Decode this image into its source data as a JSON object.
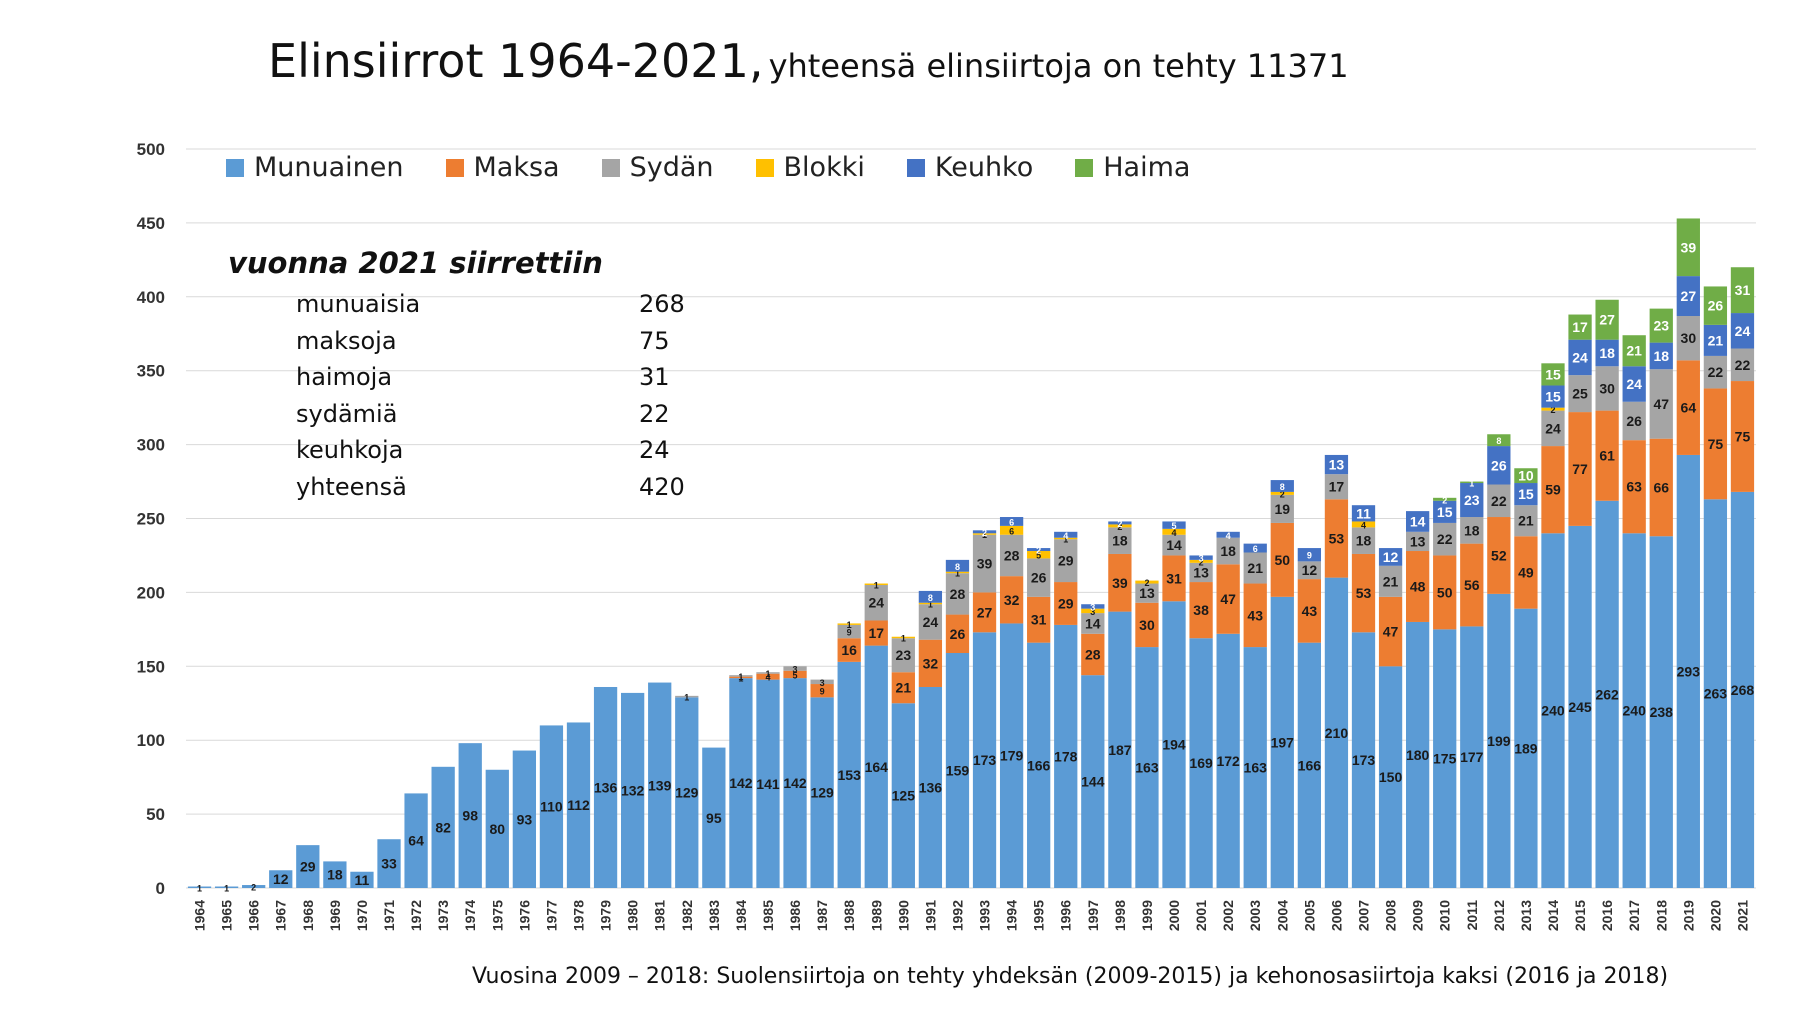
{
  "title": "Elinsiirrot 1964-2021,",
  "subtitle": "yhteensä elinsiirtoja on tehty 11371",
  "info": {
    "heading": "vuonna 2021 siirrettiin",
    "rows": [
      {
        "label": "munuaisia",
        "value": "268"
      },
      {
        "label": "maksoja",
        "value": "75"
      },
      {
        "label": "haimoja",
        "value": "31"
      },
      {
        "label": "sydämiä",
        "value": "22"
      },
      {
        "label": "keuhkoja",
        "value": "24"
      },
      {
        "label": "yhteensä",
        "value": "420"
      }
    ]
  },
  "footnote": "Vuosina 2009 – 2018: Suolensiirtoja on tehty yhdeksän (2009-2015) ja kehonosasiirtoja kaksi (2016 ja 2018)",
  "chart_data": {
    "type": "bar",
    "stacked": true,
    "ylim": [
      0,
      500
    ],
    "yticks": [
      0,
      50,
      100,
      150,
      200,
      250,
      300,
      350,
      400,
      450,
      500
    ],
    "grid": true,
    "legend_position": "top",
    "categories": [
      "1964",
      "1965",
      "1966",
      "1967",
      "1968",
      "1969",
      "1970",
      "1971",
      "1972",
      "1973",
      "1974",
      "1975",
      "1976",
      "1977",
      "1978",
      "1979",
      "1980",
      "1981",
      "1982",
      "1983",
      "1984",
      "1985",
      "1986",
      "1987",
      "1988",
      "1989",
      "1990",
      "1991",
      "1992",
      "1993",
      "1994",
      "1995",
      "1996",
      "1997",
      "1998",
      "1999",
      "2000",
      "2001",
      "2002",
      "2003",
      "2004",
      "2005",
      "2006",
      "2007",
      "2008",
      "2009",
      "2010",
      "2011",
      "2012",
      "2013",
      "2014",
      "2015",
      "2016",
      "2017",
      "2018",
      "2019",
      "2020",
      "2021"
    ],
    "series": [
      {
        "name": "Munuainen",
        "color": "#5B9BD5",
        "values": [
          1,
          1,
          2,
          12,
          29,
          18,
          11,
          33,
          64,
          82,
          98,
          80,
          93,
          110,
          112,
          136,
          132,
          139,
          129,
          95,
          142,
          141,
          142,
          129,
          153,
          164,
          125,
          136,
          159,
          173,
          179,
          166,
          178,
          144,
          187,
          163,
          194,
          169,
          172,
          163,
          197,
          166,
          210,
          173,
          150,
          180,
          175,
          177,
          199,
          189,
          240,
          245,
          262,
          240,
          238,
          293,
          263,
          268
        ]
      },
      {
        "name": "Maksa",
        "color": "#ED7D31",
        "values": [
          0,
          0,
          0,
          0,
          0,
          0,
          0,
          0,
          0,
          0,
          0,
          0,
          0,
          0,
          0,
          0,
          0,
          0,
          0,
          0,
          1,
          4,
          5,
          9,
          16,
          17,
          21,
          32,
          26,
          27,
          32,
          31,
          29,
          28,
          39,
          30,
          31,
          38,
          47,
          43,
          50,
          43,
          53,
          53,
          47,
          48,
          50,
          56,
          52,
          49,
          59,
          77,
          61,
          63,
          66,
          64,
          75,
          75
        ]
      },
      {
        "name": "Sydän",
        "color": "#A5A5A5",
        "values": [
          0,
          0,
          0,
          0,
          0,
          0,
          0,
          0,
          0,
          0,
          0,
          0,
          0,
          0,
          0,
          0,
          0,
          0,
          1,
          0,
          1,
          1,
          3,
          3,
          9,
          24,
          23,
          24,
          28,
          39,
          28,
          26,
          29,
          14,
          18,
          13,
          14,
          13,
          18,
          21,
          19,
          12,
          17,
          18,
          21,
          13,
          22,
          18,
          22,
          21,
          24,
          25,
          30,
          26,
          47,
          30,
          22,
          22
        ]
      },
      {
        "name": "Blokki",
        "color": "#FFC000",
        "values": [
          0,
          0,
          0,
          0,
          0,
          0,
          0,
          0,
          0,
          0,
          0,
          0,
          0,
          0,
          0,
          0,
          0,
          0,
          0,
          0,
          0,
          0,
          0,
          0,
          1,
          1,
          1,
          1,
          1,
          1,
          6,
          5,
          1,
          3,
          2,
          2,
          4,
          2,
          0,
          0,
          2,
          0,
          0,
          4,
          0,
          0,
          0,
          0,
          0,
          0,
          2,
          0,
          0,
          0,
          0,
          0,
          0,
          0
        ]
      },
      {
        "name": "Keuhko",
        "color": "#4472C4",
        "values": [
          0,
          0,
          0,
          0,
          0,
          0,
          0,
          0,
          0,
          0,
          0,
          0,
          0,
          0,
          0,
          0,
          0,
          0,
          0,
          0,
          0,
          0,
          0,
          0,
          0,
          0,
          0,
          8,
          8,
          2,
          6,
          2,
          4,
          3,
          2,
          0,
          5,
          3,
          4,
          6,
          8,
          9,
          13,
          11,
          12,
          14,
          15,
          23,
          26,
          15,
          15,
          24,
          18,
          24,
          18,
          27,
          21,
          24
        ]
      },
      {
        "name": "Haima",
        "color": "#70AD47",
        "values": [
          0,
          0,
          0,
          0,
          0,
          0,
          0,
          0,
          0,
          0,
          0,
          0,
          0,
          0,
          0,
          0,
          0,
          0,
          0,
          0,
          0,
          0,
          0,
          0,
          0,
          0,
          0,
          0,
          0,
          0,
          0,
          0,
          0,
          0,
          0,
          0,
          0,
          0,
          0,
          0,
          0,
          0,
          0,
          0,
          0,
          0,
          2,
          1,
          8,
          10,
          15,
          17,
          27,
          21,
          23,
          39,
          26,
          31
        ]
      }
    ]
  }
}
